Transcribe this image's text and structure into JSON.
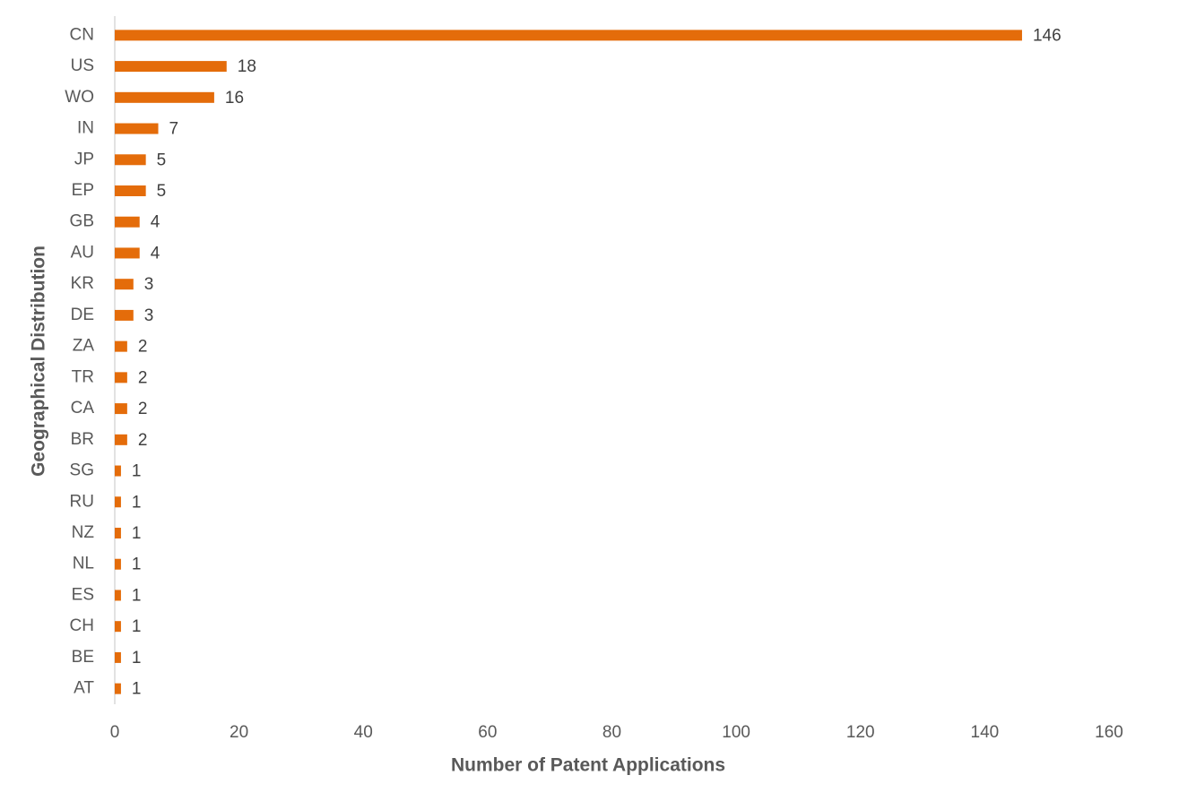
{
  "chart_data": {
    "type": "bar",
    "orientation": "horizontal",
    "x_label": "Number of Patent Applications",
    "y_label": "Geographical Distribution",
    "categories": [
      "CN",
      "US",
      "WO",
      "IN",
      "JP",
      "EP",
      "GB",
      "AU",
      "KR",
      "DE",
      "ZA",
      "TR",
      "CA",
      "BR",
      "SG",
      "RU",
      "NZ",
      "NL",
      "ES",
      "CH",
      "BE",
      "AT"
    ],
    "values": [
      146,
      18,
      16,
      7,
      5,
      5,
      4,
      4,
      3,
      3,
      2,
      2,
      2,
      2,
      1,
      1,
      1,
      1,
      1,
      1,
      1,
      1
    ],
    "color": "#e46c0a",
    "xlim": [
      0,
      160
    ],
    "xticks": [
      0,
      20,
      40,
      60,
      80,
      100,
      120,
      140,
      160
    ],
    "grid": false,
    "data_labels": true
  }
}
